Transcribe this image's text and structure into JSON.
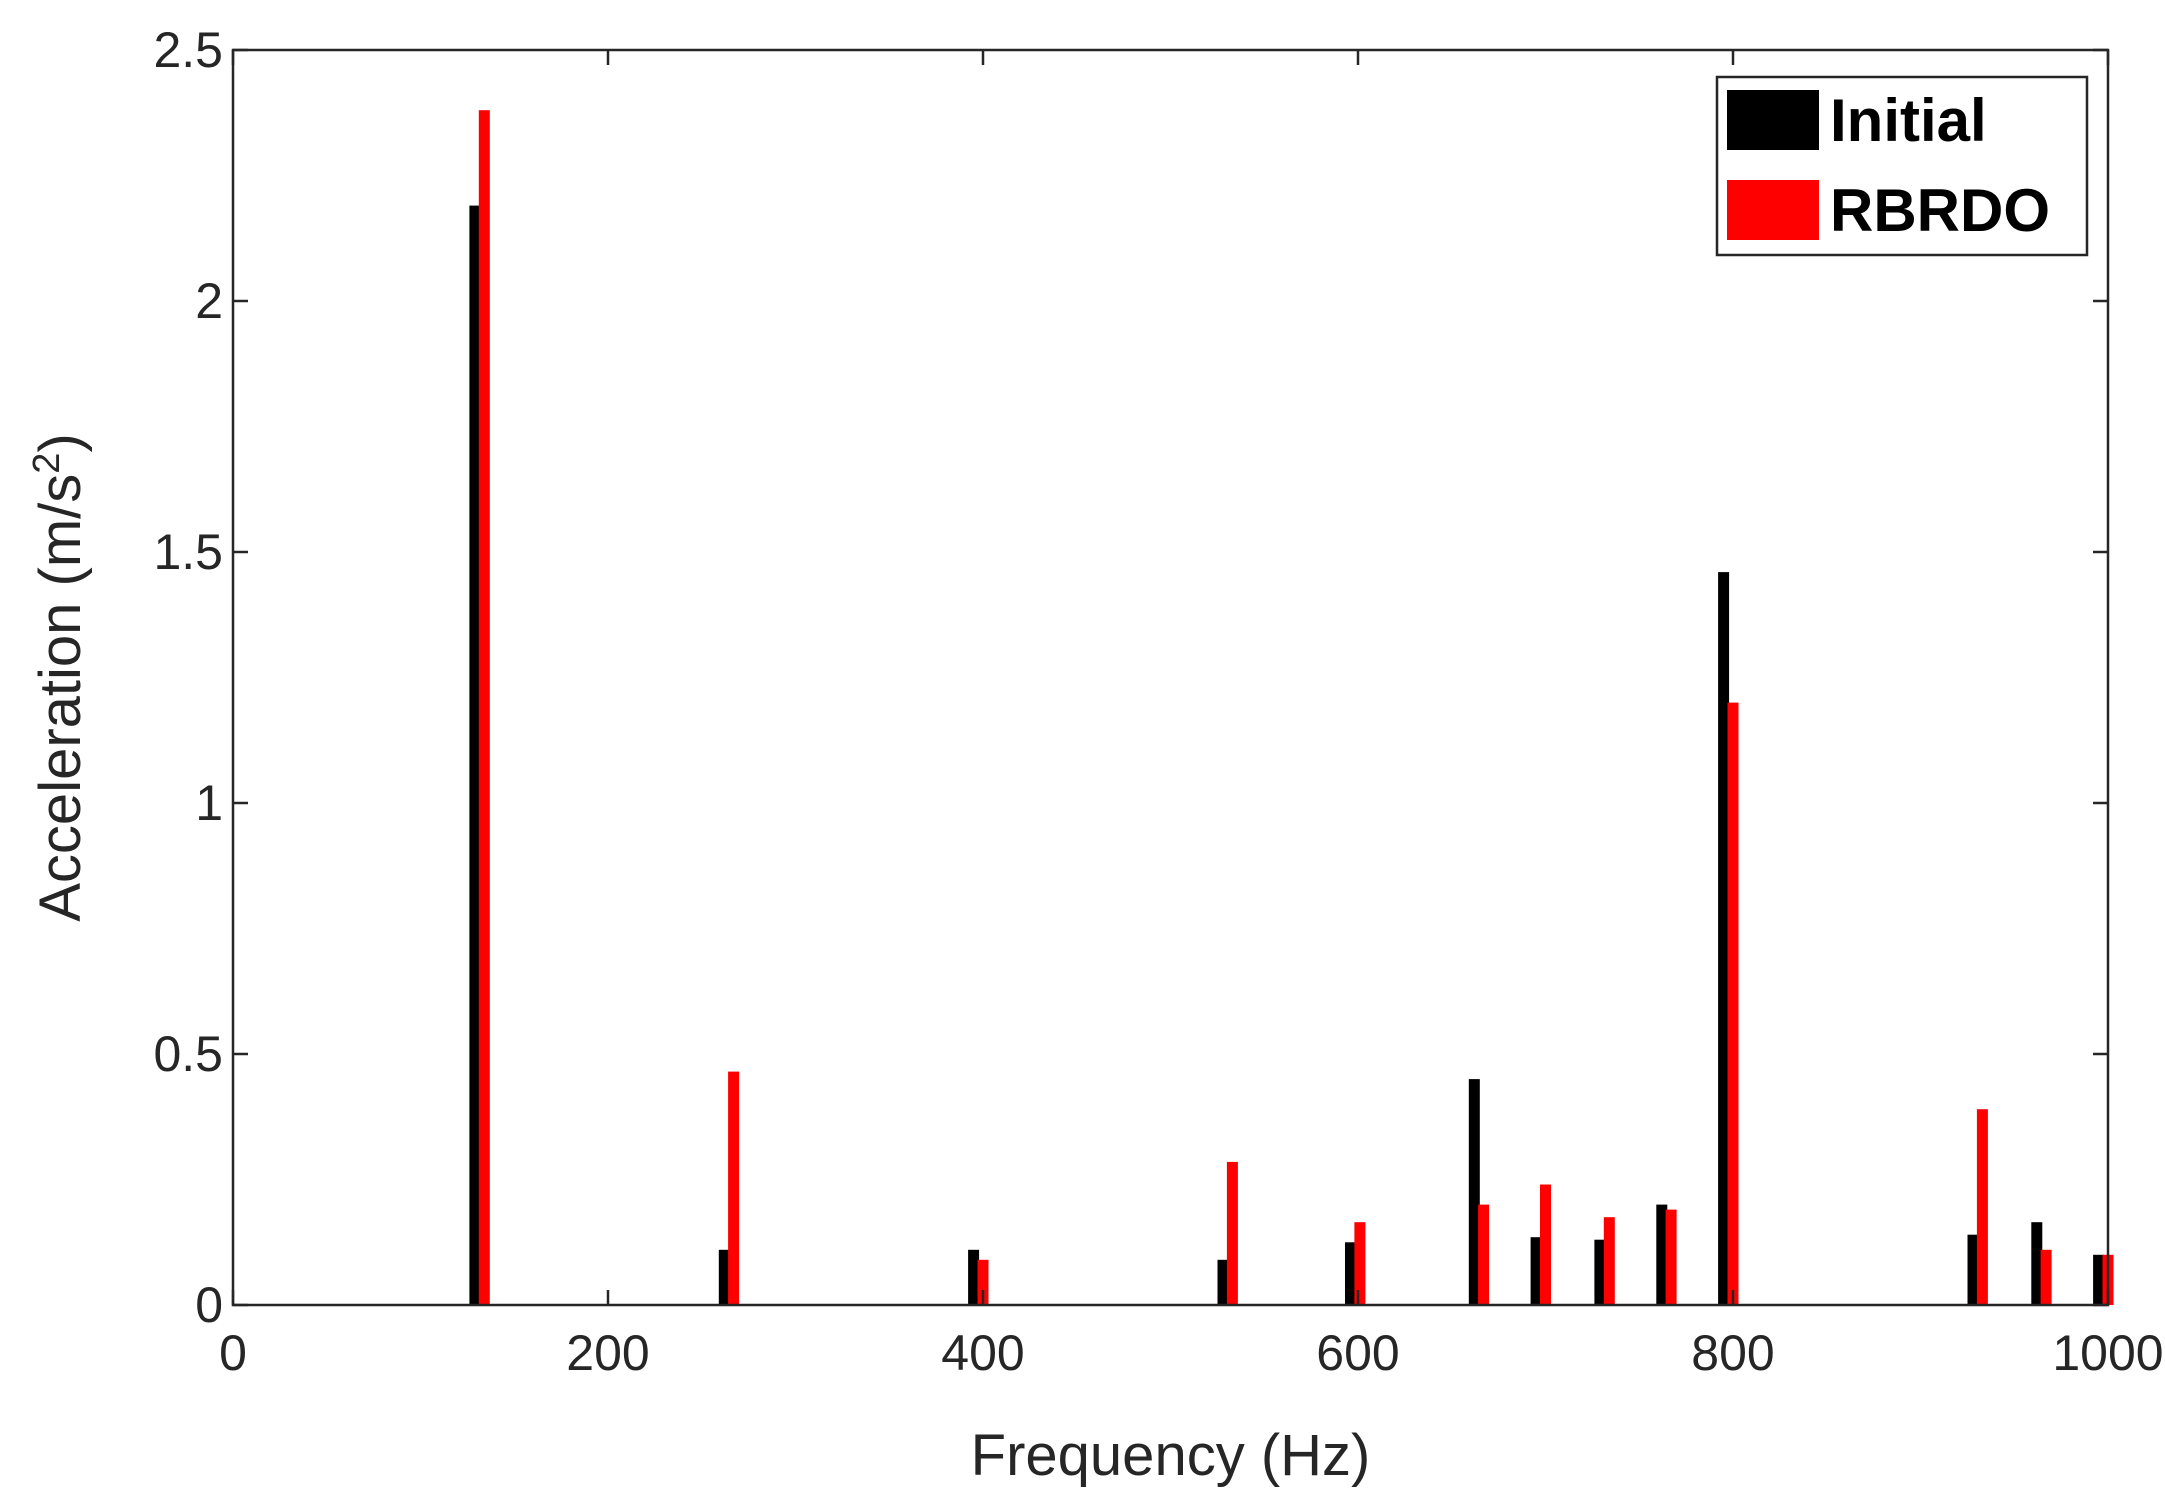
{
  "chart_data": {
    "type": "bar",
    "xlabel": "Frequency (Hz)",
    "ylabel_main": "Acceleration (m/s",
    "ylabel_sup": "2",
    "ylabel_close": ")",
    "xlim": [
      0,
      1000
    ],
    "ylim": [
      0,
      2.5
    ],
    "xticks": [
      0,
      200,
      400,
      600,
      800,
      1000
    ],
    "xtick_labels": [
      "0",
      "200",
      "400",
      "600",
      "800",
      "1000"
    ],
    "yticks": [
      0,
      0.5,
      1,
      1.5,
      2,
      2.5
    ],
    "ytick_labels": [
      "0",
      "0.5",
      "1",
      "1.5",
      "2",
      "2.5"
    ],
    "grid": false,
    "legend_position": "top-right",
    "series": [
      {
        "name": "Initial",
        "color": "#000000",
        "points": [
          {
            "x": 129,
            "y": 2.19
          },
          {
            "x": 262,
            "y": 0.11
          },
          {
            "x": 395,
            "y": 0.11
          },
          {
            "x": 528,
            "y": 0.09
          },
          {
            "x": 596,
            "y": 0.125
          },
          {
            "x": 662,
            "y": 0.45
          },
          {
            "x": 695,
            "y": 0.135
          },
          {
            "x": 729,
            "y": 0.13
          },
          {
            "x": 762,
            "y": 0.2
          },
          {
            "x": 795,
            "y": 1.46
          },
          {
            "x": 928,
            "y": 0.14
          },
          {
            "x": 962,
            "y": 0.165
          },
          {
            "x": 995,
            "y": 0.1
          }
        ]
      },
      {
        "name": "RBRDO",
        "color": "#ff0000",
        "points": [
          {
            "x": 134,
            "y": 2.38
          },
          {
            "x": 267,
            "y": 0.465
          },
          {
            "x": 400,
            "y": 0.09
          },
          {
            "x": 533,
            "y": 0.285
          },
          {
            "x": 601,
            "y": 0.165
          },
          {
            "x": 667,
            "y": 0.2
          },
          {
            "x": 700,
            "y": 0.24
          },
          {
            "x": 734,
            "y": 0.175
          },
          {
            "x": 767,
            "y": 0.19
          },
          {
            "x": 800,
            "y": 1.2
          },
          {
            "x": 933,
            "y": 0.39
          },
          {
            "x": 967,
            "y": 0.11
          },
          {
            "x": 1000,
            "y": 0.1
          }
        ]
      }
    ]
  }
}
